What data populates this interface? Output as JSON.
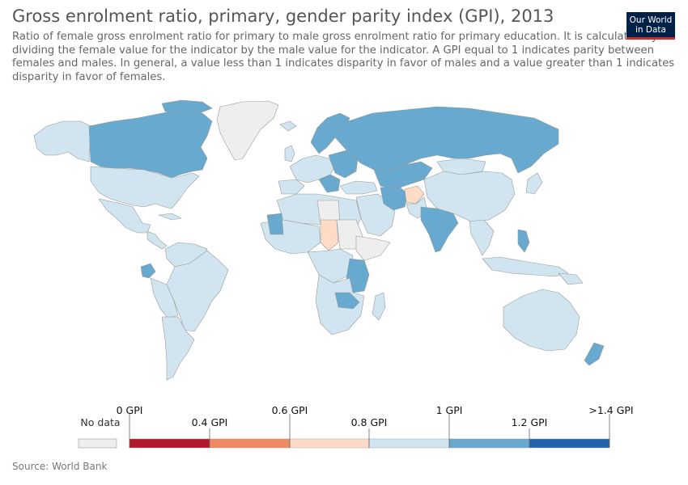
{
  "header": {
    "title": "Gross enrolment ratio, primary, gender parity index (GPI), 2013",
    "subtitle": "Ratio of female gross enrolment ratio for primary to male gross enrolment ratio for primary education. It is calculated by dividing the female value for the indicator by the male value for the indicator. A GPI equal to 1 indicates parity between females and males. In general, a value less than 1 indicates disparity in favor of males and a value greater than 1 indicates disparity in favor of females."
  },
  "logo": {
    "line1": "Our World",
    "line2": "in Data"
  },
  "colors": {
    "no_data": "#eeeeee",
    "bin_0_04": "#b2182b",
    "bin_04_06": "#ef8a62",
    "bin_06_08": "#fddbc7",
    "bin_08_1": "#d1e5f0",
    "bin_1_12": "#67a9cf",
    "bin_12_14": "#2166ac",
    "border": "#999999"
  },
  "legend": {
    "no_data_label": "No data",
    "ticks": [
      "0 GPI",
      "0.4 GPI",
      "0.6 GPI",
      "0.8 GPI",
      "1 GPI",
      "1.2 GPI",
      ">1.4 GPI"
    ]
  },
  "footer": {
    "source": "Source: World Bank"
  }
}
